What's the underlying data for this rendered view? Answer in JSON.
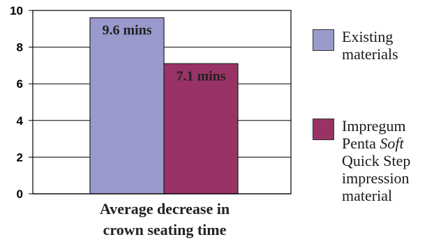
{
  "chart_data": {
    "type": "bar",
    "categories": [
      "Average decrease in crown seating time"
    ],
    "category_lines": [
      "Average decrease in",
      "crown seating time"
    ],
    "series": [
      {
        "name": "Existing materials",
        "values": [
          9.6
        ],
        "color": "#9999cc",
        "data_label": "9.6 mins"
      },
      {
        "name": "Impregum Penta Soft Quick Step impression material",
        "values": [
          7.1
        ],
        "color": "#993366",
        "data_label": "7.1 mins"
      }
    ],
    "ylim": [
      0,
      10
    ],
    "yticks": [
      "0",
      "2",
      "4",
      "6",
      "8",
      "10"
    ],
    "grid": true,
    "legend_position": "right"
  },
  "legend": {
    "items": [
      {
        "lines": [
          "Existing",
          "materials"
        ],
        "color": "#9999cc"
      },
      {
        "line1": "Impregum",
        "line2_prefix": "Penta ",
        "line2_italic": "Soft",
        "line3": "Quick Step",
        "line4": "impression",
        "line5": "material",
        "color": "#993366"
      }
    ]
  }
}
